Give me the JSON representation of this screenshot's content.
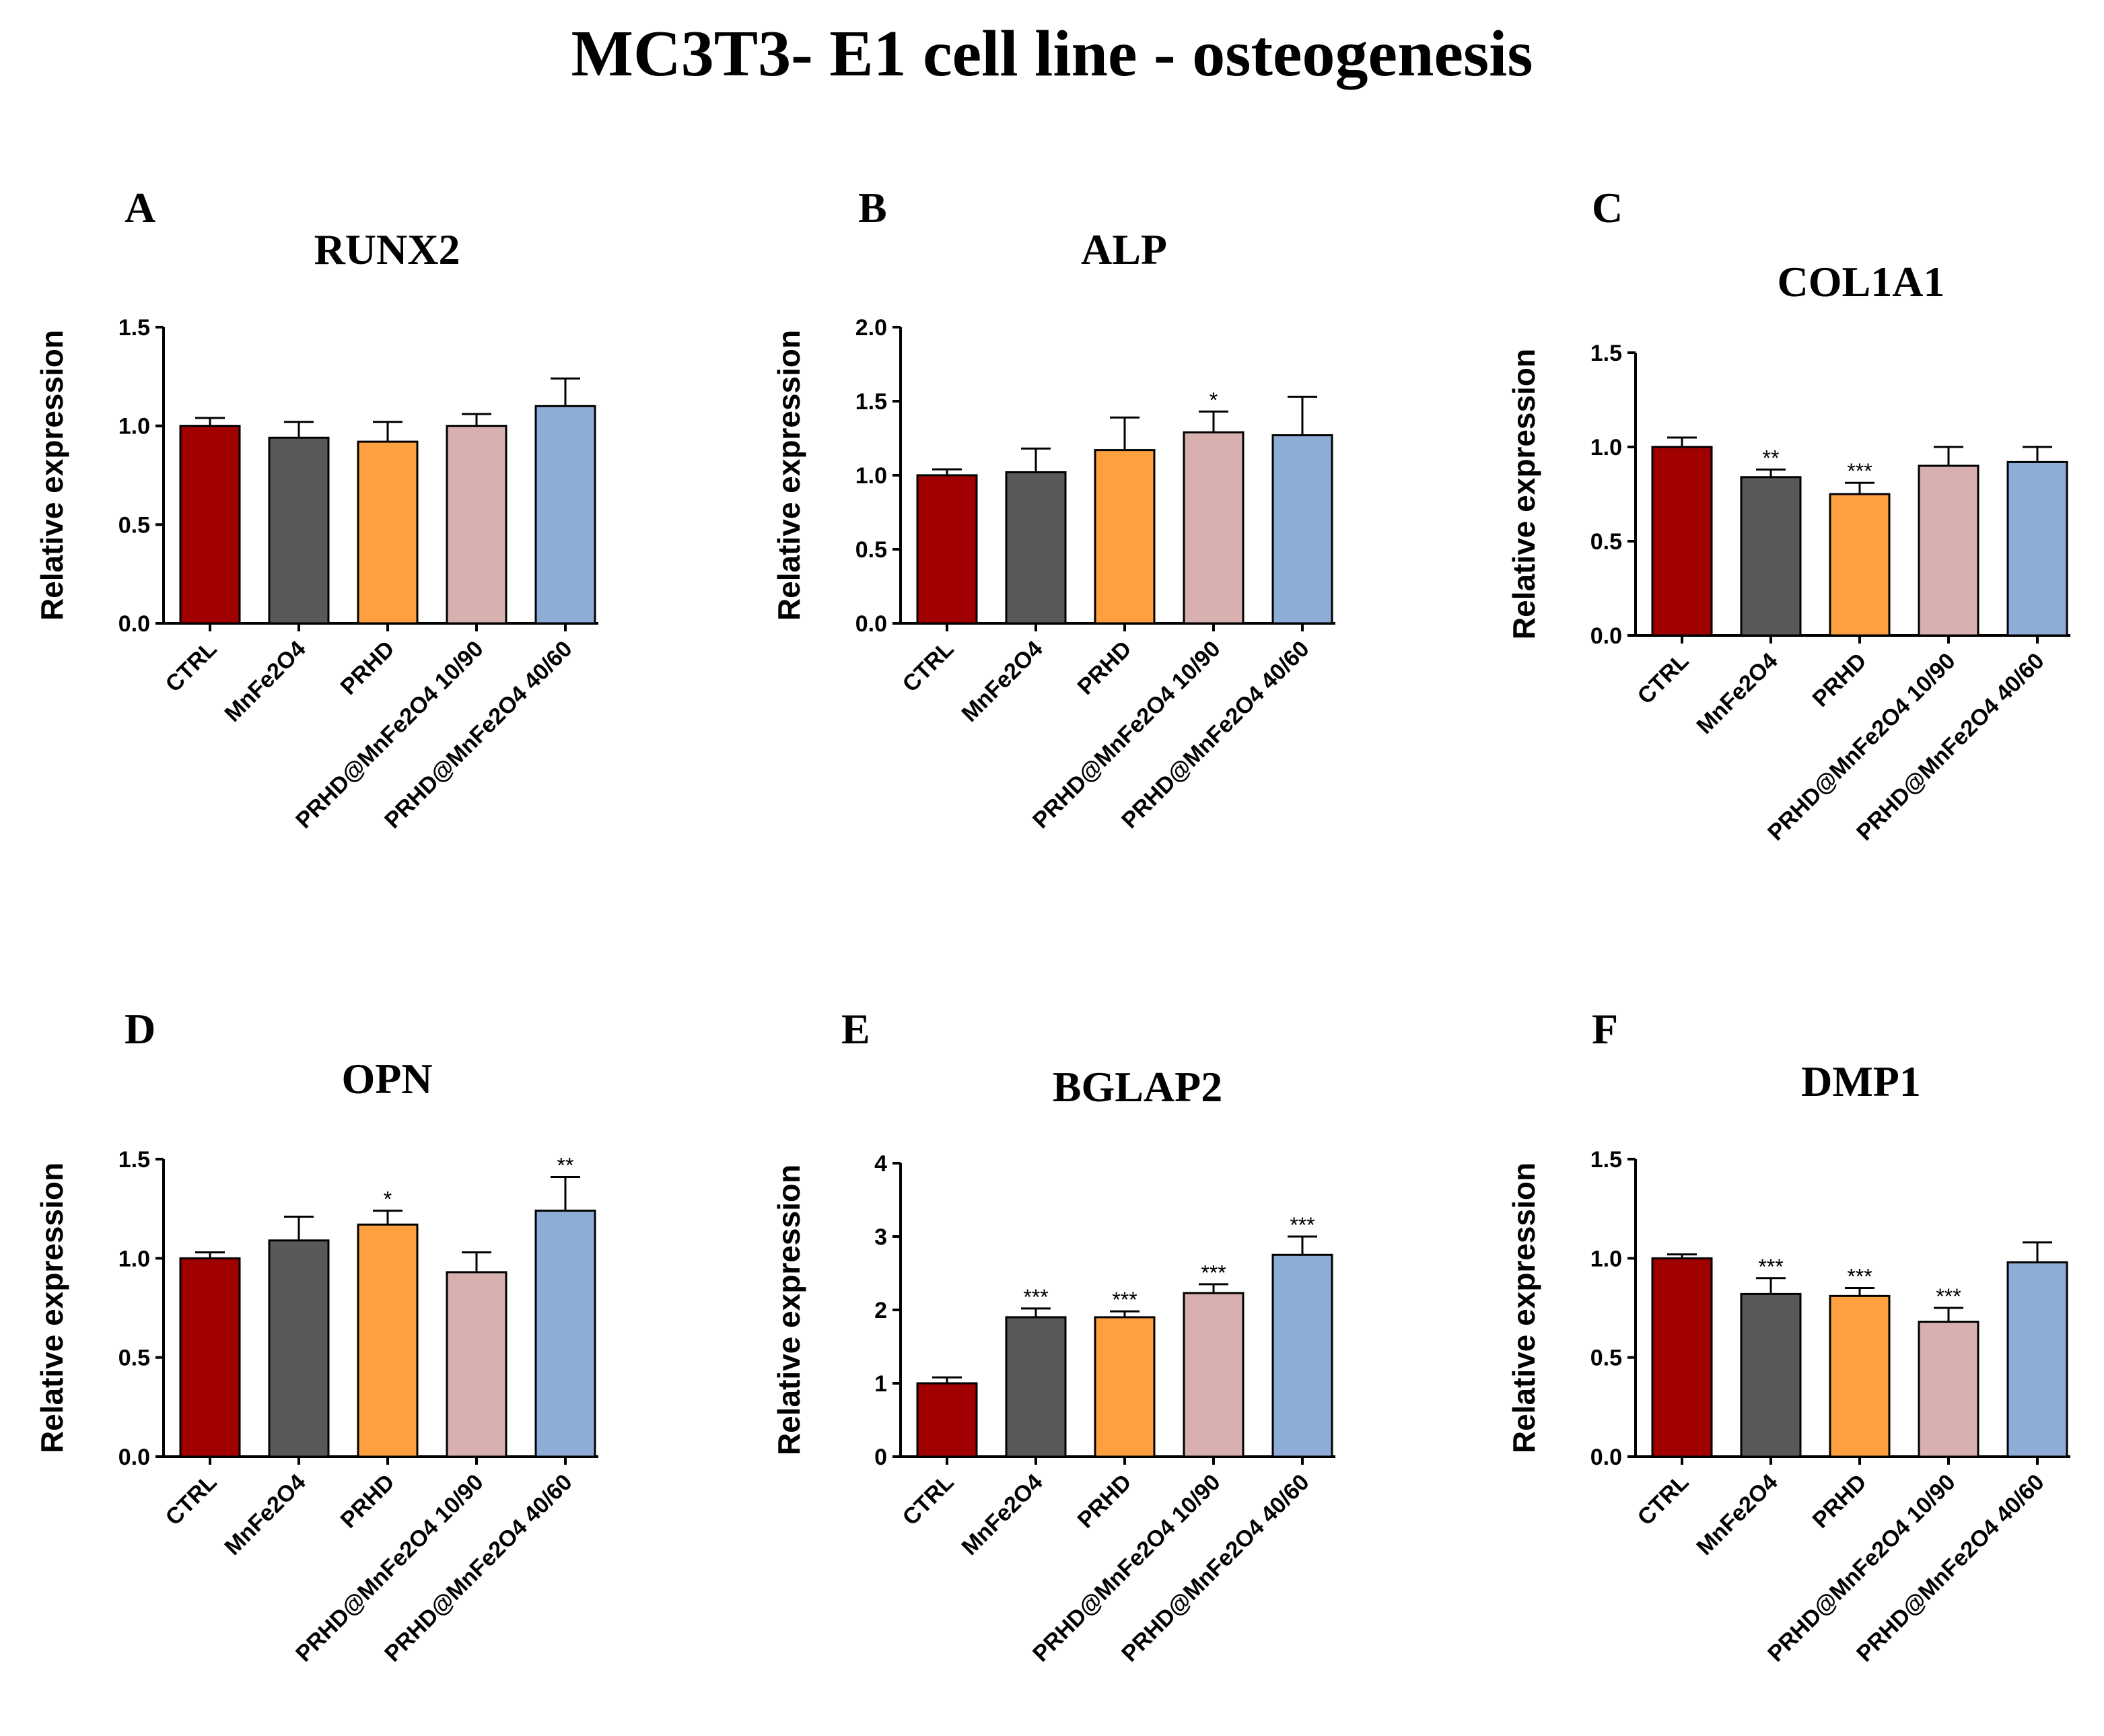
{
  "figure": {
    "title": "MC3T3- E1 cell line - osteogenesis",
    "colors": {
      "CTRL": "#a00000",
      "MnFe2O4": "#595959",
      "PRHD": "#ffa040",
      "PRHD@MnFe2O4 10/90": "#d8b0b0",
      "PRHD@MnFe2O4 40/60": "#8eadd6"
    }
  },
  "chart_data": [
    {
      "type": "bar",
      "panel": "A",
      "title": "RUNX2",
      "ylabel": "Relative expression",
      "categories": [
        "CTRL",
        "MnFe2O4",
        "PRHD",
        "PRHD@MnFe2O4 10/90",
        "PRHD@MnFe2O4 40/60"
      ],
      "values": [
        1.0,
        0.94,
        0.92,
        1.0,
        1.1
      ],
      "errors": [
        0.04,
        0.08,
        0.1,
        0.06,
        0.14
      ],
      "significance": [
        "",
        "",
        "",
        "",
        ""
      ],
      "ylim": [
        0,
        1.5
      ],
      "yticks": [
        "0.0",
        "0.5",
        "1.0",
        "1.5"
      ]
    },
    {
      "type": "bar",
      "panel": "B",
      "title": "ALP",
      "ylabel": "Relative expression",
      "categories": [
        "CTRL",
        "MnFe2O4",
        "PRHD",
        "PRHD@MnFe2O4 10/90",
        "PRHD@MnFe2O4 40/60"
      ],
      "values": [
        1.0,
        1.02,
        1.17,
        1.29,
        1.27
      ],
      "errors": [
        0.04,
        0.16,
        0.22,
        0.14,
        0.26
      ],
      "significance": [
        "",
        "",
        "",
        "*",
        ""
      ],
      "ylim": [
        0,
        2.0
      ],
      "yticks": [
        "0.0",
        "0.5",
        "1.0",
        "1.5",
        "2.0"
      ]
    },
    {
      "type": "bar",
      "panel": "C",
      "title": "COL1A1",
      "ylabel": "Relative expression",
      "categories": [
        "CTRL",
        "MnFe2O4",
        "PRHD",
        "PRHD@MnFe2O4 10/90",
        "PRHD@MnFe2O4 40/60"
      ],
      "values": [
        1.0,
        0.84,
        0.75,
        0.9,
        0.92
      ],
      "errors": [
        0.05,
        0.04,
        0.06,
        0.1,
        0.08
      ],
      "significance": [
        "",
        "**",
        "***",
        "",
        ""
      ],
      "ylim": [
        0,
        1.5
      ],
      "yticks": [
        "0.0",
        "0.5",
        "1.0",
        "1.5"
      ]
    },
    {
      "type": "bar",
      "panel": "D",
      "title": "OPN",
      "ylabel": "Relative expression",
      "categories": [
        "CTRL",
        "MnFe2O4",
        "PRHD",
        "PRHD@MnFe2O4 10/90",
        "PRHD@MnFe2O4 40/60"
      ],
      "values": [
        1.0,
        1.09,
        1.17,
        0.93,
        1.24
      ],
      "errors": [
        0.03,
        0.12,
        0.07,
        0.1,
        0.17
      ],
      "significance": [
        "",
        "",
        "*",
        "",
        "**"
      ],
      "ylim": [
        0,
        1.5
      ],
      "yticks": [
        "0.0",
        "0.5",
        "1.0",
        "1.5"
      ]
    },
    {
      "type": "bar",
      "panel": "E",
      "title": "BGLAP2",
      "ylabel": "Relative expression",
      "categories": [
        "CTRL",
        "MnFe2O4",
        "PRHD",
        "PRHD@MnFe2O4 10/90",
        "PRHD@MnFe2O4 40/60"
      ],
      "values": [
        1.0,
        1.9,
        1.9,
        2.23,
        2.75
      ],
      "errors": [
        0.08,
        0.12,
        0.08,
        0.12,
        0.25
      ],
      "significance": [
        "",
        "***",
        "***",
        "***",
        "***"
      ],
      "ylim": [
        0,
        4
      ],
      "yticks": [
        "0",
        "1",
        "2",
        "3",
        "4"
      ]
    },
    {
      "type": "bar",
      "panel": "F",
      "title": "DMP1",
      "ylabel": "Relative expression",
      "categories": [
        "CTRL",
        "MnFe2O4",
        "PRHD",
        "PRHD@MnFe2O4 10/90",
        "PRHD@MnFe2O4 40/60"
      ],
      "values": [
        1.0,
        0.82,
        0.81,
        0.68,
        0.98
      ],
      "errors": [
        0.02,
        0.08,
        0.04,
        0.07,
        0.1
      ],
      "significance": [
        "",
        "***",
        "***",
        "***",
        ""
      ],
      "ylim": [
        0,
        1.5
      ],
      "yticks": [
        "0.0",
        "0.5",
        "1.0",
        "1.5"
      ]
    }
  ]
}
